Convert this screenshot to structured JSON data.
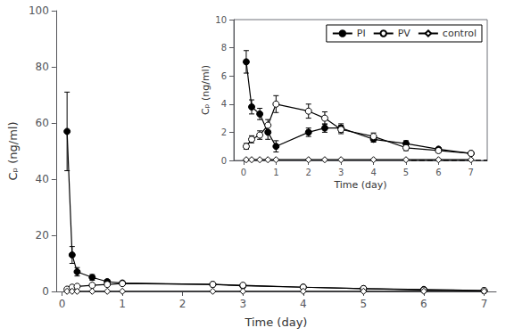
{
  "chart_data": [
    {
      "type": "line",
      "xlabel": "Time (day)",
      "ylabel": "Cₚ (ng/ml)",
      "xlim": [
        -0.1,
        7.2
      ],
      "ylim": [
        0,
        100
      ],
      "xticks": [
        0,
        1,
        2,
        3,
        4,
        5,
        6,
        7
      ],
      "yticks": [
        0,
        20,
        40,
        60,
        80,
        100
      ],
      "grid": false,
      "series": [
        {
          "name": "PI",
          "color": "black",
          "marker": "filled_circle",
          "x": [
            0.083,
            0.167,
            0.25,
            0.5,
            0.75,
            1.0,
            2.5,
            3.0,
            4.0,
            5.0,
            6.0,
            7.0
          ],
          "values": [
            57.0,
            13.0,
            7.0,
            5.0,
            3.5,
            3.0,
            2.5,
            2.0,
            1.5,
            1.0,
            0.7,
            0.3
          ],
          "errors": [
            14.0,
            3.0,
            1.5,
            1.0,
            0.7,
            0.5,
            0.4,
            0.3,
            0.2,
            0.2,
            0.1,
            0.1
          ]
        },
        {
          "name": "PV",
          "color": "black",
          "marker": "open_circle",
          "x": [
            0.083,
            0.167,
            0.25,
            0.5,
            0.75,
            1.0,
            2.5,
            3.0,
            4.0,
            5.0,
            6.0,
            7.0
          ],
          "values": [
            0.8,
            1.5,
            1.8,
            2.2,
            2.5,
            2.8,
            2.5,
            2.2,
            1.5,
            1.0,
            0.5,
            0.3
          ],
          "errors": [
            0.15,
            0.2,
            0.3,
            0.3,
            0.4,
            0.4,
            0.3,
            0.3,
            0.2,
            0.15,
            0.1,
            0.05
          ]
        },
        {
          "name": "control",
          "color": "black",
          "marker": "open_diamond",
          "x": [
            0.083,
            0.167,
            0.25,
            0.5,
            0.75,
            1.0,
            2.5,
            3.0,
            4.0,
            5.0,
            6.0,
            7.0
          ],
          "values": [
            0.05,
            0.05,
            0.05,
            0.05,
            0.05,
            0.05,
            0.05,
            0.05,
            0.05,
            0.05,
            0.05,
            0.05
          ],
          "errors": [
            0.01,
            0.01,
            0.01,
            0.01,
            0.01,
            0.01,
            0.01,
            0.01,
            0.01,
            0.01,
            0.01,
            0.01
          ]
        }
      ]
    },
    {
      "type": "line",
      "xlabel": "Time (day)",
      "ylabel": "Cₚ (ng/ml)",
      "xlim": [
        -0.3,
        7.5
      ],
      "ylim": [
        0,
        10
      ],
      "xticks": [
        0,
        1,
        2,
        3,
        4,
        5,
        6,
        7
      ],
      "yticks": [
        0,
        2,
        4,
        6,
        8,
        10
      ],
      "grid": false,
      "legend": "upper right",
      "series": [
        {
          "name": "PI",
          "color": "black",
          "marker": "filled_circle",
          "x": [
            0.083,
            0.25,
            0.5,
            0.75,
            1.0,
            2.0,
            2.5,
            3.0,
            4.0,
            5.0,
            6.0,
            7.0
          ],
          "values": [
            7.0,
            3.8,
            3.3,
            2.0,
            1.0,
            2.0,
            2.3,
            2.3,
            1.5,
            1.2,
            0.8,
            0.5
          ],
          "errors": [
            0.8,
            0.5,
            0.4,
            0.5,
            0.4,
            0.3,
            0.3,
            0.3,
            0.2,
            0.2,
            0.1,
            0.1
          ]
        },
        {
          "name": "PV",
          "color": "black",
          "marker": "open_circle",
          "x": [
            0.083,
            0.25,
            0.5,
            0.75,
            1.0,
            2.0,
            2.5,
            3.0,
            4.0,
            5.0,
            6.0,
            7.0
          ],
          "values": [
            1.0,
            1.5,
            1.8,
            2.5,
            4.0,
            3.5,
            3.0,
            2.2,
            1.7,
            0.9,
            0.7,
            0.5
          ],
          "errors": [
            0.2,
            0.25,
            0.3,
            0.4,
            0.6,
            0.5,
            0.45,
            0.3,
            0.25,
            0.2,
            0.15,
            0.1
          ]
        },
        {
          "name": "control",
          "color": "black",
          "marker": "open_diamond",
          "x": [
            0.083,
            0.25,
            0.5,
            0.75,
            1.0,
            2.0,
            2.5,
            3.0,
            4.0,
            5.0,
            6.0,
            7.0
          ],
          "values": [
            0.05,
            0.05,
            0.05,
            0.05,
            0.05,
            0.05,
            0.05,
            0.05,
            0.05,
            0.05,
            0.05,
            0.05
          ],
          "errors": [
            0.02,
            0.02,
            0.02,
            0.02,
            0.02,
            0.02,
            0.02,
            0.02,
            0.02,
            0.02,
            0.02,
            0.02
          ]
        },
        {
          "type": "hline",
          "values": [
            0.0
          ],
          "line_style": "dashed",
          "color": "black"
        }
      ]
    }
  ]
}
